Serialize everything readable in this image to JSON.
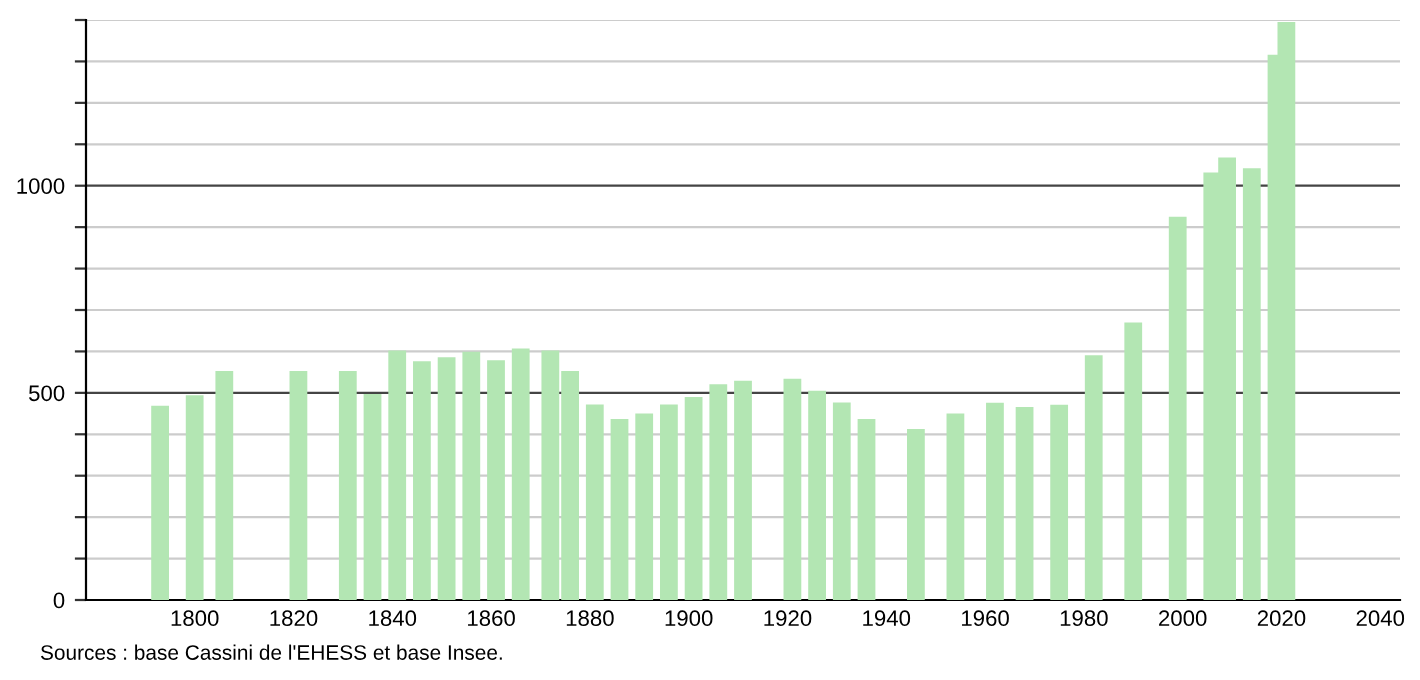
{
  "chart_data": {
    "type": "bar",
    "x": [
      1793,
      1800,
      1806,
      1821,
      1831,
      1836,
      1841,
      1846,
      1851,
      1856,
      1861,
      1866,
      1872,
      1876,
      1881,
      1886,
      1891,
      1896,
      1901,
      1906,
      1911,
      1921,
      1926,
      1931,
      1936,
      1946,
      1954,
      1962,
      1968,
      1975,
      1982,
      1990,
      1999,
      2006,
      2009,
      2014,
      2019,
      2021
    ],
    "values": [
      469,
      494,
      553,
      553,
      553,
      497,
      602,
      576,
      586,
      599,
      579,
      607,
      602,
      553,
      472,
      437,
      450,
      472,
      490,
      521,
      529,
      534,
      505,
      477,
      437,
      413,
      450,
      476,
      466,
      471,
      591,
      670,
      925,
      1032,
      1068,
      1042,
      1316,
      1395
    ],
    "color": "#b3e6b3",
    "xlim": [
      1778,
      2044
    ],
    "xticks": [
      1800,
      1820,
      1840,
      1860,
      1880,
      1900,
      1920,
      1940,
      1960,
      1980,
      2000,
      2020,
      2040
    ],
    "ylim": [
      0,
      1400
    ],
    "yticks": [
      0,
      {
        "value": 100,
        "label": null
      },
      {
        "value": 200,
        "label": null
      },
      {
        "value": 300,
        "label": null
      },
      {
        "value": 400,
        "label": null
      },
      500,
      {
        "value": 600,
        "label": null
      },
      {
        "value": 700,
        "label": null
      },
      {
        "value": 800,
        "label": null
      },
      {
        "value": 900,
        "label": null
      },
      1000,
      {
        "value": 1100,
        "label": null
      },
      {
        "value": 1200,
        "label": null
      },
      {
        "value": 1300,
        "label": null
      },
      {
        "value": 1400,
        "label": null
      }
    ],
    "grid": "y",
    "annotations": [
      "Sources : base Cassini de l'EHESS et base Insee."
    ]
  }
}
